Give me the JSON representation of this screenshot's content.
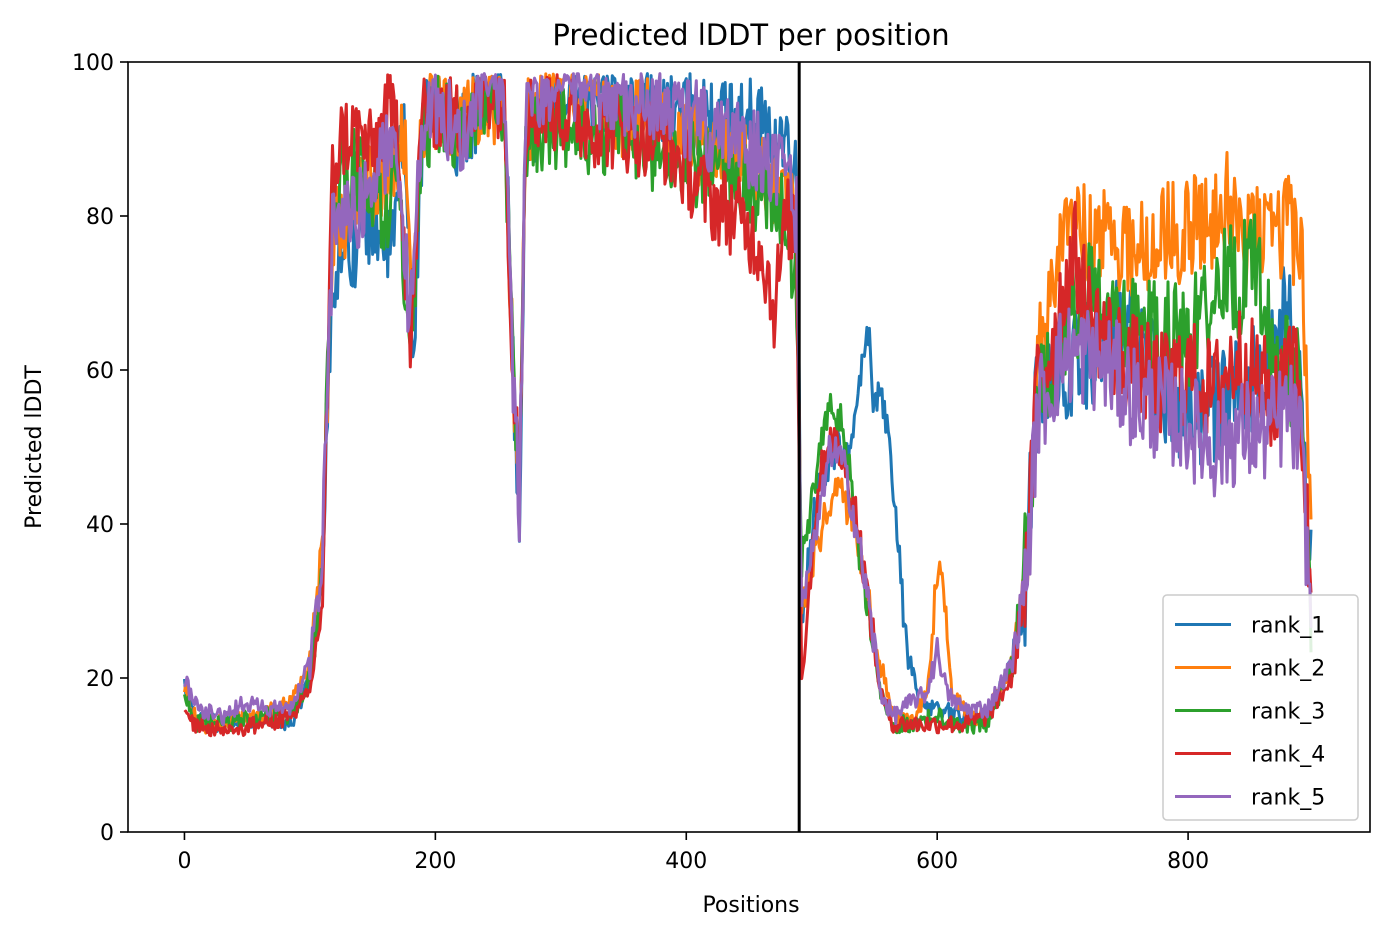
{
  "chart_data": {
    "type": "line",
    "title": "Predicted lDDT per position",
    "xlabel": "Positions",
    "ylabel": "Predicted lDDT",
    "xlim": [
      -45,
      945
    ],
    "ylim": [
      0,
      100
    ],
    "xticks": [
      0,
      200,
      400,
      600,
      800
    ],
    "yticks": [
      0,
      20,
      40,
      60,
      80,
      100
    ],
    "x_tick_labels": [
      "0",
      "200",
      "400",
      "600",
      "800"
    ],
    "y_tick_labels": [
      "0",
      "20",
      "40",
      "60",
      "80",
      "100"
    ],
    "grid": false,
    "legend_position": "lower-right",
    "chain_boundary_x": 490,
    "n_positions": 898,
    "series": [
      {
        "name": "rank_1",
        "color": "#1f77b4",
        "points": [
          [
            0,
            19
          ],
          [
            10,
            15
          ],
          [
            30,
            14
          ],
          [
            60,
            15
          ],
          [
            85,
            14
          ],
          [
            100,
            20
          ],
          [
            110,
            35
          ],
          [
            118,
            70
          ],
          [
            125,
            78
          ],
          [
            135,
            76
          ],
          [
            150,
            80
          ],
          [
            165,
            75
          ],
          [
            175,
            92
          ],
          [
            182,
            62
          ],
          [
            190,
            92
          ],
          [
            200,
            95
          ],
          [
            220,
            90
          ],
          [
            240,
            96
          ],
          [
            255,
            95
          ],
          [
            262,
            60
          ],
          [
            267,
            42
          ],
          [
            272,
            90
          ],
          [
            290,
            96
          ],
          [
            320,
            97
          ],
          [
            350,
            96
          ],
          [
            380,
            95
          ],
          [
            400,
            94
          ],
          [
            420,
            92
          ],
          [
            440,
            93
          ],
          [
            460,
            92
          ],
          [
            480,
            88
          ],
          [
            488,
            85
          ],
          [
            492,
            28
          ],
          [
            505,
            45
          ],
          [
            520,
            50
          ],
          [
            530,
            48
          ],
          [
            540,
            60
          ],
          [
            545,
            65
          ],
          [
            550,
            55
          ],
          [
            556,
            57
          ],
          [
            565,
            45
          ],
          [
            575,
            25
          ],
          [
            585,
            17
          ],
          [
            600,
            16
          ],
          [
            620,
            15
          ],
          [
            640,
            15
          ],
          [
            660,
            22
          ],
          [
            670,
            30
          ],
          [
            678,
            55
          ],
          [
            690,
            60
          ],
          [
            700,
            60
          ],
          [
            720,
            62
          ],
          [
            740,
            65
          ],
          [
            760,
            63
          ],
          [
            780,
            58
          ],
          [
            800,
            54
          ],
          [
            820,
            55
          ],
          [
            840,
            57
          ],
          [
            860,
            60
          ],
          [
            870,
            65
          ],
          [
            880,
            68
          ],
          [
            885,
            60
          ],
          [
            890,
            55
          ],
          [
            898,
            33
          ]
        ]
      },
      {
        "name": "rank_2",
        "color": "#ff7f0e",
        "points": [
          [
            0,
            19
          ],
          [
            10,
            14
          ],
          [
            30,
            14
          ],
          [
            60,
            15
          ],
          [
            85,
            17
          ],
          [
            100,
            22
          ],
          [
            110,
            38
          ],
          [
            118,
            78
          ],
          [
            130,
            80
          ],
          [
            145,
            84
          ],
          [
            165,
            85
          ],
          [
            175,
            90
          ],
          [
            182,
            70
          ],
          [
            190,
            93
          ],
          [
            200,
            94
          ],
          [
            220,
            92
          ],
          [
            240,
            95
          ],
          [
            255,
            94
          ],
          [
            262,
            60
          ],
          [
            267,
            45
          ],
          [
            272,
            92
          ],
          [
            290,
            95
          ],
          [
            320,
            96
          ],
          [
            350,
            93
          ],
          [
            380,
            92
          ],
          [
            400,
            90
          ],
          [
            420,
            88
          ],
          [
            440,
            87
          ],
          [
            460,
            85
          ],
          [
            480,
            84
          ],
          [
            488,
            80
          ],
          [
            492,
            28
          ],
          [
            505,
            38
          ],
          [
            520,
            45
          ],
          [
            535,
            40
          ],
          [
            545,
            30
          ],
          [
            555,
            22
          ],
          [
            565,
            15
          ],
          [
            580,
            14
          ],
          [
            592,
            18
          ],
          [
            598,
            30
          ],
          [
            602,
            35
          ],
          [
            606,
            30
          ],
          [
            612,
            18
          ],
          [
            625,
            15
          ],
          [
            640,
            15
          ],
          [
            660,
            22
          ],
          [
            672,
            35
          ],
          [
            680,
            60
          ],
          [
            690,
            70
          ],
          [
            700,
            80
          ],
          [
            705,
            83
          ],
          [
            720,
            76
          ],
          [
            740,
            78
          ],
          [
            760,
            75
          ],
          [
            780,
            78
          ],
          [
            800,
            78
          ],
          [
            820,
            80
          ],
          [
            830,
            83
          ],
          [
            840,
            76
          ],
          [
            860,
            78
          ],
          [
            870,
            76
          ],
          [
            880,
            80
          ],
          [
            890,
            75
          ],
          [
            895,
            60
          ],
          [
            898,
            35
          ]
        ]
      },
      {
        "name": "rank_3",
        "color": "#2ca02c",
        "points": [
          [
            0,
            18
          ],
          [
            10,
            14
          ],
          [
            30,
            14
          ],
          [
            60,
            15
          ],
          [
            85,
            15
          ],
          [
            100,
            20
          ],
          [
            110,
            33
          ],
          [
            118,
            82
          ],
          [
            130,
            87
          ],
          [
            145,
            84
          ],
          [
            160,
            80
          ],
          [
            170,
            86
          ],
          [
            180,
            58
          ],
          [
            190,
            90
          ],
          [
            200,
            93
          ],
          [
            220,
            91
          ],
          [
            240,
            96
          ],
          [
            255,
            93
          ],
          [
            262,
            60
          ],
          [
            267,
            45
          ],
          [
            272,
            90
          ],
          [
            290,
            92
          ],
          [
            320,
            90
          ],
          [
            350,
            91
          ],
          [
            380,
            88
          ],
          [
            400,
            87
          ],
          [
            420,
            86
          ],
          [
            440,
            85
          ],
          [
            460,
            83
          ],
          [
            480,
            81
          ],
          [
            488,
            68
          ],
          [
            492,
            35
          ],
          [
            505,
            48
          ],
          [
            515,
            55
          ],
          [
            525,
            53
          ],
          [
            535,
            40
          ],
          [
            545,
            28
          ],
          [
            555,
            18
          ],
          [
            565,
            14
          ],
          [
            580,
            14
          ],
          [
            600,
            15
          ],
          [
            620,
            14
          ],
          [
            640,
            14
          ],
          [
            660,
            22
          ],
          [
            672,
            38
          ],
          [
            680,
            58
          ],
          [
            690,
            60
          ],
          [
            700,
            65
          ],
          [
            720,
            70
          ],
          [
            740,
            65
          ],
          [
            760,
            66
          ],
          [
            780,
            65
          ],
          [
            800,
            64
          ],
          [
            820,
            70
          ],
          [
            830,
            73
          ],
          [
            840,
            70
          ],
          [
            850,
            77
          ],
          [
            860,
            68
          ],
          [
            870,
            60
          ],
          [
            880,
            60
          ],
          [
            890,
            58
          ],
          [
            898,
            30
          ]
        ]
      },
      {
        "name": "rank_4",
        "color": "#d62728",
        "points": [
          [
            0,
            15
          ],
          [
            10,
            14
          ],
          [
            30,
            13
          ],
          [
            60,
            14
          ],
          [
            85,
            15
          ],
          [
            100,
            18
          ],
          [
            110,
            30
          ],
          [
            118,
            85
          ],
          [
            125,
            90
          ],
          [
            135,
            91
          ],
          [
            150,
            88
          ],
          [
            160,
            93
          ],
          [
            170,
            93
          ],
          [
            180,
            62
          ],
          [
            190,
            95
          ],
          [
            200,
            94
          ],
          [
            220,
            92
          ],
          [
            240,
            97
          ],
          [
            255,
            95
          ],
          [
            262,
            60
          ],
          [
            267,
            48
          ],
          [
            272,
            93
          ],
          [
            290,
            94
          ],
          [
            320,
            92
          ],
          [
            350,
            91
          ],
          [
            380,
            90
          ],
          [
            400,
            86
          ],
          [
            420,
            82
          ],
          [
            440,
            80
          ],
          [
            460,
            76
          ],
          [
            470,
            68
          ],
          [
            480,
            80
          ],
          [
            488,
            78
          ],
          [
            492,
            20
          ],
          [
            505,
            45
          ],
          [
            515,
            52
          ],
          [
            525,
            48
          ],
          [
            535,
            42
          ],
          [
            545,
            30
          ],
          [
            555,
            18
          ],
          [
            565,
            14
          ],
          [
            580,
            14
          ],
          [
            600,
            14
          ],
          [
            620,
            14
          ],
          [
            640,
            15
          ],
          [
            660,
            20
          ],
          [
            672,
            35
          ],
          [
            680,
            60
          ],
          [
            690,
            62
          ],
          [
            700,
            70
          ],
          [
            710,
            75
          ],
          [
            720,
            68
          ],
          [
            740,
            63
          ],
          [
            760,
            60
          ],
          [
            780,
            58
          ],
          [
            800,
            60
          ],
          [
            820,
            57
          ],
          [
            840,
            62
          ],
          [
            860,
            58
          ],
          [
            870,
            55
          ],
          [
            880,
            65
          ],
          [
            890,
            55
          ],
          [
            898,
            30
          ]
        ]
      },
      {
        "name": "rank_5",
        "color": "#9467bd",
        "points": [
          [
            0,
            20
          ],
          [
            10,
            16
          ],
          [
            30,
            15
          ],
          [
            50,
            17
          ],
          [
            60,
            16
          ],
          [
            85,
            16
          ],
          [
            100,
            22
          ],
          [
            110,
            35
          ],
          [
            118,
            78
          ],
          [
            125,
            82
          ],
          [
            135,
            80
          ],
          [
            150,
            85
          ],
          [
            160,
            88
          ],
          [
            170,
            90
          ],
          [
            180,
            65
          ],
          [
            190,
            93
          ],
          [
            200,
            95
          ],
          [
            220,
            90
          ],
          [
            240,
            98
          ],
          [
            255,
            96
          ],
          [
            262,
            60
          ],
          [
            267,
            41
          ],
          [
            272,
            96
          ],
          [
            290,
            97
          ],
          [
            320,
            97
          ],
          [
            350,
            96
          ],
          [
            380,
            95
          ],
          [
            400,
            93
          ],
          [
            420,
            91
          ],
          [
            440,
            90
          ],
          [
            460,
            88
          ],
          [
            480,
            86
          ],
          [
            488,
            80
          ],
          [
            492,
            28
          ],
          [
            505,
            40
          ],
          [
            515,
            50
          ],
          [
            525,
            48
          ],
          [
            535,
            40
          ],
          [
            545,
            30
          ],
          [
            555,
            18
          ],
          [
            565,
            15
          ],
          [
            580,
            17
          ],
          [
            592,
            18
          ],
          [
            598,
            23
          ],
          [
            602,
            23
          ],
          [
            608,
            18
          ],
          [
            620,
            16
          ],
          [
            640,
            16
          ],
          [
            660,
            22
          ],
          [
            672,
            35
          ],
          [
            680,
            55
          ],
          [
            690,
            58
          ],
          [
            700,
            62
          ],
          [
            720,
            62
          ],
          [
            740,
            60
          ],
          [
            760,
            56
          ],
          [
            780,
            55
          ],
          [
            800,
            53
          ],
          [
            820,
            50
          ],
          [
            840,
            52
          ],
          [
            860,
            52
          ],
          [
            870,
            53
          ],
          [
            880,
            55
          ],
          [
            890,
            50
          ],
          [
            898,
            28
          ]
        ]
      }
    ]
  }
}
